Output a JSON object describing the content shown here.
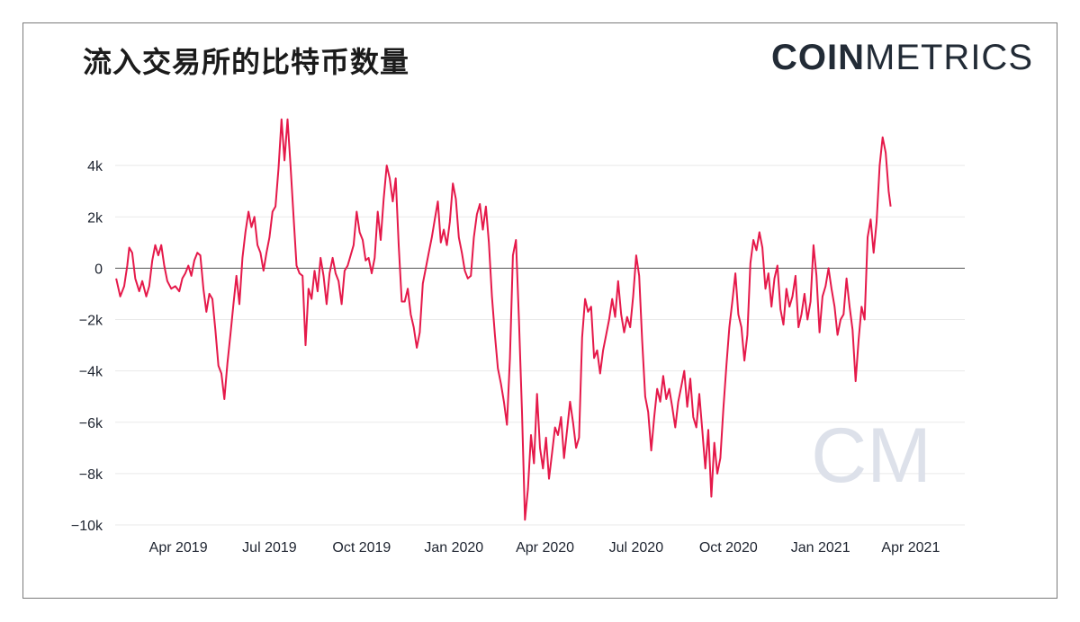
{
  "title": "流入交易所的比特币数量",
  "logo": {
    "bold": "COIN",
    "light": "METRICS",
    "watermark": "CM"
  },
  "colors": {
    "series": "#e5194a",
    "zero_line": "#555555",
    "grid": "#e9e9e9",
    "watermark": "#dde1ea"
  },
  "chart_data": {
    "type": "line",
    "title": "流入交易所的比特币数量",
    "xlabel": "",
    "ylabel": "",
    "grid": true,
    "legend": "none",
    "x_range": [
      "2019-01-28",
      "2021-05-25"
    ],
    "ylim": [
      -10000,
      6000
    ],
    "y_ticks": [
      4000,
      2000,
      0,
      -2000,
      -4000,
      -6000,
      -8000,
      -10000
    ],
    "y_tick_labels": [
      "4k",
      "2k",
      "0",
      "−2k",
      "−4k",
      "−6k",
      "−8k",
      "−10k"
    ],
    "x_ticks": [
      "2019-04-01",
      "2019-07-01",
      "2019-10-01",
      "2020-01-01",
      "2020-04-01",
      "2020-07-01",
      "2020-10-01",
      "2021-01-01",
      "2021-04-01"
    ],
    "x_tick_labels": [
      "Apr 2019",
      "Jul 2019",
      "Oct 2019",
      "Jan 2020",
      "Apr 2020",
      "Jul 2020",
      "Oct 2020",
      "Jan 2021",
      "Apr 2021"
    ],
    "series": [
      {
        "values": [
          [
            "2019-01-29",
            -400
          ],
          [
            "2019-02-02",
            -1100
          ],
          [
            "2019-02-06",
            -700
          ],
          [
            "2019-02-09",
            100
          ],
          [
            "2019-02-11",
            800
          ],
          [
            "2019-02-14",
            600
          ],
          [
            "2019-02-17",
            -400
          ],
          [
            "2019-02-21",
            -900
          ],
          [
            "2019-02-24",
            -500
          ],
          [
            "2019-02-28",
            -1100
          ],
          [
            "2019-03-03",
            -700
          ],
          [
            "2019-03-06",
            300
          ],
          [
            "2019-03-09",
            900
          ],
          [
            "2019-03-12",
            500
          ],
          [
            "2019-03-15",
            900
          ],
          [
            "2019-03-18",
            100
          ],
          [
            "2019-03-21",
            -500
          ],
          [
            "2019-03-25",
            -800
          ],
          [
            "2019-03-29",
            -700
          ],
          [
            "2019-04-02",
            -900
          ],
          [
            "2019-04-05",
            -400
          ],
          [
            "2019-04-08",
            -200
          ],
          [
            "2019-04-11",
            100
          ],
          [
            "2019-04-14",
            -300
          ],
          [
            "2019-04-17",
            300
          ],
          [
            "2019-04-20",
            600
          ],
          [
            "2019-04-23",
            500
          ],
          [
            "2019-04-26",
            -800
          ],
          [
            "2019-04-29",
            -1700
          ],
          [
            "2019-05-02",
            -1000
          ],
          [
            "2019-05-05",
            -1200
          ],
          [
            "2019-05-08",
            -2400
          ],
          [
            "2019-05-11",
            -3800
          ],
          [
            "2019-05-14",
            -4100
          ],
          [
            "2019-05-17",
            -5100
          ],
          [
            "2019-05-20",
            -3700
          ],
          [
            "2019-05-23",
            -2600
          ],
          [
            "2019-05-26",
            -1400
          ],
          [
            "2019-05-29",
            -300
          ],
          [
            "2019-06-01",
            -1400
          ],
          [
            "2019-06-04",
            400
          ],
          [
            "2019-06-07",
            1400
          ],
          [
            "2019-06-10",
            2200
          ],
          [
            "2019-06-13",
            1600
          ],
          [
            "2019-06-16",
            2000
          ],
          [
            "2019-06-19",
            900
          ],
          [
            "2019-06-22",
            600
          ],
          [
            "2019-06-25",
            -100
          ],
          [
            "2019-06-28",
            600
          ],
          [
            "2019-07-01",
            1200
          ],
          [
            "2019-07-04",
            2200
          ],
          [
            "2019-07-07",
            2400
          ],
          [
            "2019-07-10",
            3900
          ],
          [
            "2019-07-13",
            5800
          ],
          [
            "2019-07-16",
            4200
          ],
          [
            "2019-07-19",
            5800
          ],
          [
            "2019-07-22",
            4000
          ],
          [
            "2019-07-25",
            2000
          ],
          [
            "2019-07-28",
            100
          ],
          [
            "2019-07-31",
            -200
          ],
          [
            "2019-08-03",
            -300
          ],
          [
            "2019-08-06",
            -3000
          ],
          [
            "2019-08-09",
            -800
          ],
          [
            "2019-08-12",
            -1200
          ],
          [
            "2019-08-15",
            -100
          ],
          [
            "2019-08-18",
            -900
          ],
          [
            "2019-08-21",
            400
          ],
          [
            "2019-08-24",
            -300
          ],
          [
            "2019-08-27",
            -1400
          ],
          [
            "2019-08-30",
            -200
          ],
          [
            "2019-09-02",
            400
          ],
          [
            "2019-09-05",
            -200
          ],
          [
            "2019-09-08",
            -500
          ],
          [
            "2019-09-11",
            -1400
          ],
          [
            "2019-09-14",
            -100
          ],
          [
            "2019-09-17",
            100
          ],
          [
            "2019-09-20",
            500
          ],
          [
            "2019-09-23",
            900
          ],
          [
            "2019-09-26",
            2200
          ],
          [
            "2019-09-29",
            1400
          ],
          [
            "2019-10-02",
            1100
          ],
          [
            "2019-10-05",
            300
          ],
          [
            "2019-10-08",
            400
          ],
          [
            "2019-10-11",
            -200
          ],
          [
            "2019-10-14",
            400
          ],
          [
            "2019-10-17",
            2200
          ],
          [
            "2019-10-20",
            1100
          ],
          [
            "2019-10-23",
            2700
          ],
          [
            "2019-10-26",
            4000
          ],
          [
            "2019-10-29",
            3500
          ],
          [
            "2019-11-01",
            2600
          ],
          [
            "2019-11-04",
            3500
          ],
          [
            "2019-11-07",
            900
          ],
          [
            "2019-11-10",
            -1300
          ],
          [
            "2019-11-13",
            -1300
          ],
          [
            "2019-11-16",
            -800
          ],
          [
            "2019-11-19",
            -1800
          ],
          [
            "2019-11-22",
            -2300
          ],
          [
            "2019-11-25",
            -3100
          ],
          [
            "2019-11-28",
            -2500
          ],
          [
            "2019-12-01",
            -600
          ],
          [
            "2019-12-04",
            0
          ],
          [
            "2019-12-07",
            600
          ],
          [
            "2019-12-10",
            1200
          ],
          [
            "2019-12-13",
            1900
          ],
          [
            "2019-12-16",
            2600
          ],
          [
            "2019-12-19",
            1000
          ],
          [
            "2019-12-22",
            1500
          ],
          [
            "2019-12-25",
            900
          ],
          [
            "2019-12-28",
            1800
          ],
          [
            "2019-12-31",
            3300
          ],
          [
            "2020-01-03",
            2700
          ],
          [
            "2020-01-06",
            1200
          ],
          [
            "2020-01-09",
            600
          ],
          [
            "2020-01-12",
            -100
          ],
          [
            "2020-01-15",
            -400
          ],
          [
            "2020-01-18",
            -300
          ],
          [
            "2020-01-21",
            1200
          ],
          [
            "2020-01-24",
            2100
          ],
          [
            "2020-01-27",
            2500
          ],
          [
            "2020-01-30",
            1500
          ],
          [
            "2020-02-02",
            2400
          ],
          [
            "2020-02-05",
            1000
          ],
          [
            "2020-02-08",
            -1100
          ],
          [
            "2020-02-11",
            -2600
          ],
          [
            "2020-02-14",
            -3900
          ],
          [
            "2020-02-17",
            -4500
          ],
          [
            "2020-02-20",
            -5200
          ],
          [
            "2020-02-23",
            -6100
          ],
          [
            "2020-02-26",
            -3500
          ],
          [
            "2020-02-29",
            500
          ],
          [
            "2020-03-03",
            1100
          ],
          [
            "2020-03-06",
            -2000
          ],
          [
            "2020-03-09",
            -5600
          ],
          [
            "2020-03-12",
            -9800
          ],
          [
            "2020-03-15",
            -8600
          ],
          [
            "2020-03-18",
            -6500
          ],
          [
            "2020-03-21",
            -7600
          ],
          [
            "2020-03-24",
            -4900
          ],
          [
            "2020-03-27",
            -7000
          ],
          [
            "2020-03-30",
            -7800
          ],
          [
            "2020-04-02",
            -6600
          ],
          [
            "2020-04-05",
            -8200
          ],
          [
            "2020-04-08",
            -7200
          ],
          [
            "2020-04-11",
            -6200
          ],
          [
            "2020-04-14",
            -6500
          ],
          [
            "2020-04-17",
            -5800
          ],
          [
            "2020-04-20",
            -7400
          ],
          [
            "2020-04-23",
            -6300
          ],
          [
            "2020-04-26",
            -5200
          ],
          [
            "2020-04-29",
            -6000
          ],
          [
            "2020-05-02",
            -7000
          ],
          [
            "2020-05-05",
            -6600
          ],
          [
            "2020-05-08",
            -2700
          ],
          [
            "2020-05-11",
            -1200
          ],
          [
            "2020-05-14",
            -1700
          ],
          [
            "2020-05-17",
            -1500
          ],
          [
            "2020-05-20",
            -3500
          ],
          [
            "2020-05-23",
            -3200
          ],
          [
            "2020-05-26",
            -4100
          ],
          [
            "2020-05-29",
            -3200
          ],
          [
            "2020-06-01",
            -2600
          ],
          [
            "2020-06-04",
            -2000
          ],
          [
            "2020-06-07",
            -1200
          ],
          [
            "2020-06-10",
            -1900
          ],
          [
            "2020-06-13",
            -500
          ],
          [
            "2020-06-16",
            -1800
          ],
          [
            "2020-06-19",
            -2500
          ],
          [
            "2020-06-22",
            -1900
          ],
          [
            "2020-06-25",
            -2300
          ],
          [
            "2020-06-28",
            -1100
          ],
          [
            "2020-07-01",
            500
          ],
          [
            "2020-07-04",
            -300
          ],
          [
            "2020-07-07",
            -2800
          ],
          [
            "2020-07-10",
            -5000
          ],
          [
            "2020-07-13",
            -5600
          ],
          [
            "2020-07-16",
            -7100
          ],
          [
            "2020-07-19",
            -5800
          ],
          [
            "2020-07-22",
            -4700
          ],
          [
            "2020-07-25",
            -5200
          ],
          [
            "2020-07-28",
            -4200
          ],
          [
            "2020-07-31",
            -5100
          ],
          [
            "2020-08-03",
            -4700
          ],
          [
            "2020-08-06",
            -5400
          ],
          [
            "2020-08-09",
            -6200
          ],
          [
            "2020-08-12",
            -5200
          ],
          [
            "2020-08-15",
            -4600
          ],
          [
            "2020-08-18",
            -4000
          ],
          [
            "2020-08-21",
            -5400
          ],
          [
            "2020-08-24",
            -4300
          ],
          [
            "2020-08-27",
            -5800
          ],
          [
            "2020-08-30",
            -6200
          ],
          [
            "2020-09-02",
            -4900
          ],
          [
            "2020-09-05",
            -6300
          ],
          [
            "2020-09-08",
            -7800
          ],
          [
            "2020-09-11",
            -6300
          ],
          [
            "2020-09-14",
            -8900
          ],
          [
            "2020-09-17",
            -6800
          ],
          [
            "2020-09-20",
            -8000
          ],
          [
            "2020-09-23",
            -7400
          ],
          [
            "2020-09-26",
            -5500
          ],
          [
            "2020-09-29",
            -3800
          ],
          [
            "2020-10-02",
            -2300
          ],
          [
            "2020-10-05",
            -1300
          ],
          [
            "2020-10-08",
            -200
          ],
          [
            "2020-10-11",
            -1800
          ],
          [
            "2020-10-14",
            -2300
          ],
          [
            "2020-10-17",
            -3600
          ],
          [
            "2020-10-20",
            -2600
          ],
          [
            "2020-10-23",
            200
          ],
          [
            "2020-10-26",
            1100
          ],
          [
            "2020-10-29",
            700
          ],
          [
            "2020-11-01",
            1400
          ],
          [
            "2020-11-04",
            800
          ],
          [
            "2020-11-07",
            -800
          ],
          [
            "2020-11-10",
            -200
          ],
          [
            "2020-11-13",
            -1500
          ],
          [
            "2020-11-16",
            -400
          ],
          [
            "2020-11-19",
            100
          ],
          [
            "2020-11-22",
            -1600
          ],
          [
            "2020-11-25",
            -2200
          ],
          [
            "2020-11-28",
            -800
          ],
          [
            "2020-12-01",
            -1500
          ],
          [
            "2020-12-04",
            -1100
          ],
          [
            "2020-12-07",
            -300
          ],
          [
            "2020-12-10",
            -2300
          ],
          [
            "2020-12-13",
            -1800
          ],
          [
            "2020-12-16",
            -1000
          ],
          [
            "2020-12-19",
            -2000
          ],
          [
            "2020-12-22",
            -1300
          ],
          [
            "2020-12-25",
            900
          ],
          [
            "2020-12-28",
            -300
          ],
          [
            "2020-12-31",
            -2500
          ],
          [
            "2021-01-03",
            -1100
          ],
          [
            "2021-01-06",
            -700
          ],
          [
            "2021-01-09",
            0
          ],
          [
            "2021-01-12",
            -800
          ],
          [
            "2021-01-15",
            -1500
          ],
          [
            "2021-01-18",
            -2600
          ],
          [
            "2021-01-21",
            -2000
          ],
          [
            "2021-01-24",
            -1800
          ],
          [
            "2021-01-27",
            -400
          ],
          [
            "2021-01-30",
            -1500
          ],
          [
            "2021-02-02",
            -2400
          ],
          [
            "2021-02-05",
            -4400
          ],
          [
            "2021-02-08",
            -2800
          ],
          [
            "2021-02-11",
            -1500
          ],
          [
            "2021-02-14",
            -2000
          ],
          [
            "2021-02-17",
            1200
          ],
          [
            "2021-02-20",
            1900
          ],
          [
            "2021-02-23",
            600
          ],
          [
            "2021-02-26",
            1800
          ],
          [
            "2021-03-01",
            4000
          ],
          [
            "2021-03-04",
            5100
          ],
          [
            "2021-03-07",
            4500
          ],
          [
            "2021-03-10",
            3000
          ],
          [
            "2021-03-12",
            2400
          ]
        ]
      }
    ]
  }
}
